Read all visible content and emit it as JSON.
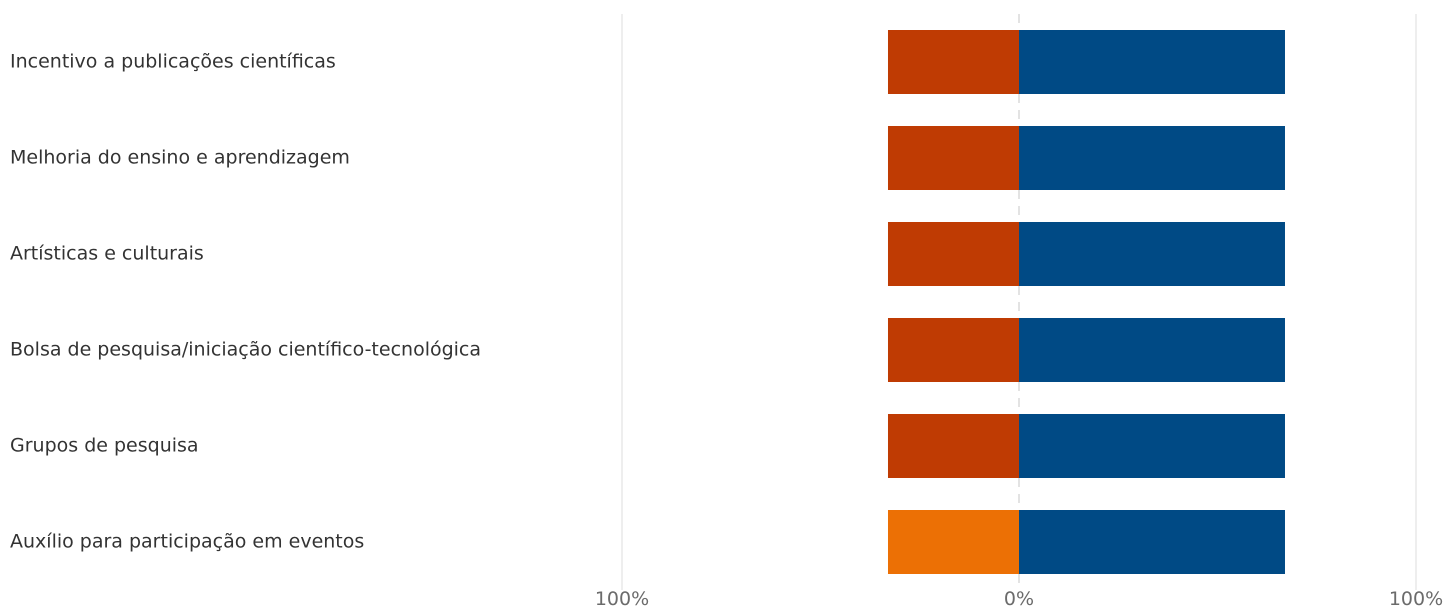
{
  "chart_data": {
    "type": "bar",
    "orientation": "horizontal",
    "stacking": "diverging",
    "categories": [
      "Incentivo a publicações científicas",
      "Melhoria do ensino e aprendizagem",
      "Artísticas e culturais",
      "Bolsa de pesquisa/iniciação científico-tecnológica",
      "Grupos de pesquisa",
      "Auxílio para participação em eventos"
    ],
    "series": [
      {
        "side": "negative",
        "values": [
          33,
          33,
          33,
          33,
          33,
          33
        ],
        "colors": [
          "#bf3b03",
          "#bf3b03",
          "#bf3b03",
          "#bf3b03",
          "#bf3b03",
          "#ec7005"
        ]
      },
      {
        "side": "positive",
        "values": [
          67,
          67,
          67,
          67,
          67,
          67
        ],
        "color": "#004a85"
      }
    ],
    "xlim": [
      -100,
      100
    ],
    "x_ticks": [
      {
        "value": -100,
        "label": "100%"
      },
      {
        "value": 0,
        "label": "0%"
      },
      {
        "value": 100,
        "label": "100%"
      }
    ],
    "title": "",
    "xlabel": "",
    "ylabel": "",
    "grid": true,
    "legend": "none"
  }
}
